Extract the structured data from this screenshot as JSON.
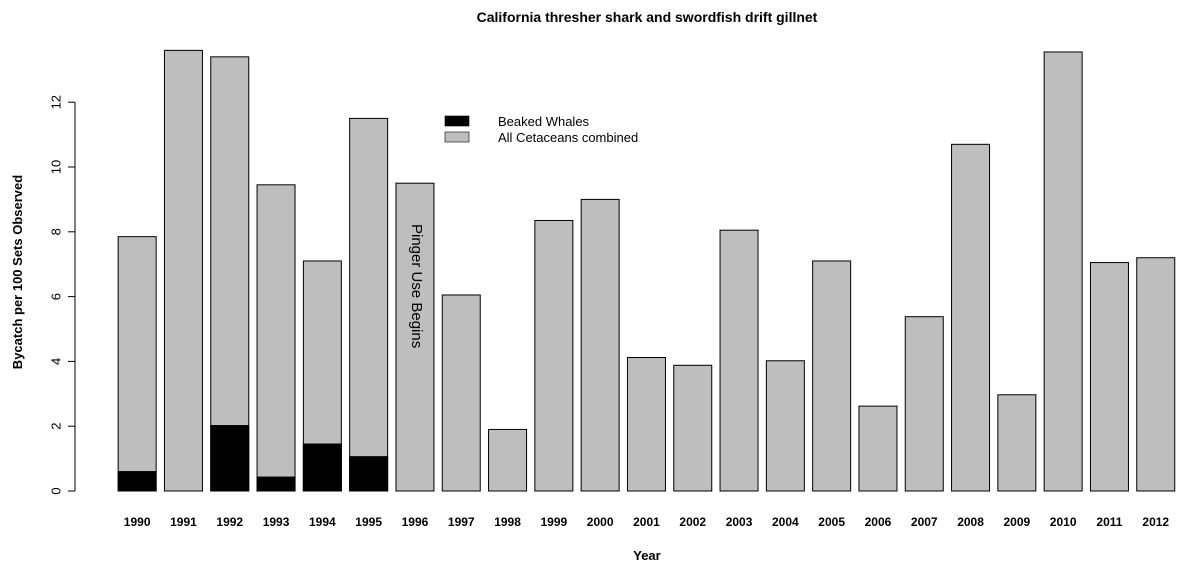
{
  "chart_data": {
    "type": "bar",
    "title": "California thresher shark and swordfish drift gillnet",
    "xlabel": "Year",
    "ylabel": "Bycatch per 100 Sets Observed",
    "ylim": [
      0,
      13.8
    ],
    "yticks": [
      0,
      2,
      4,
      6,
      8,
      10,
      12
    ],
    "categories": [
      "1990",
      "1991",
      "1992",
      "1993",
      "1994",
      "1995",
      "1996",
      "1997",
      "1998",
      "1999",
      "2000",
      "2001",
      "2002",
      "2003",
      "2004",
      "2005",
      "2006",
      "2007",
      "2008",
      "2009",
      "2010",
      "2011",
      "2012"
    ],
    "series": [
      {
        "name": "All Cetaceans combined",
        "color": "#bebebe",
        "values": [
          7.85,
          13.6,
          13.4,
          9.45,
          7.1,
          11.5,
          9.5,
          6.05,
          1.9,
          8.35,
          9.0,
          4.12,
          3.88,
          8.05,
          4.02,
          7.1,
          2.62,
          5.38,
          10.7,
          2.97,
          13.55,
          7.05,
          7.2
        ]
      },
      {
        "name": "Beaked Whales",
        "color": "#000000",
        "values": [
          0.6,
          0,
          2.02,
          0.43,
          1.45,
          1.06,
          0,
          0,
          0,
          0,
          0,
          0,
          0,
          0,
          0,
          0,
          0,
          0,
          0,
          0,
          0,
          0,
          0
        ]
      }
    ],
    "legend": {
      "placement": "top-center",
      "entries": [
        {
          "label": "Beaked Whales",
          "color": "#000000"
        },
        {
          "label": "All Cetaceans combined",
          "color": "#bebebe"
        }
      ]
    },
    "annotation": {
      "text": "Pinger Use Begins",
      "category": "1996"
    },
    "grid": false
  }
}
